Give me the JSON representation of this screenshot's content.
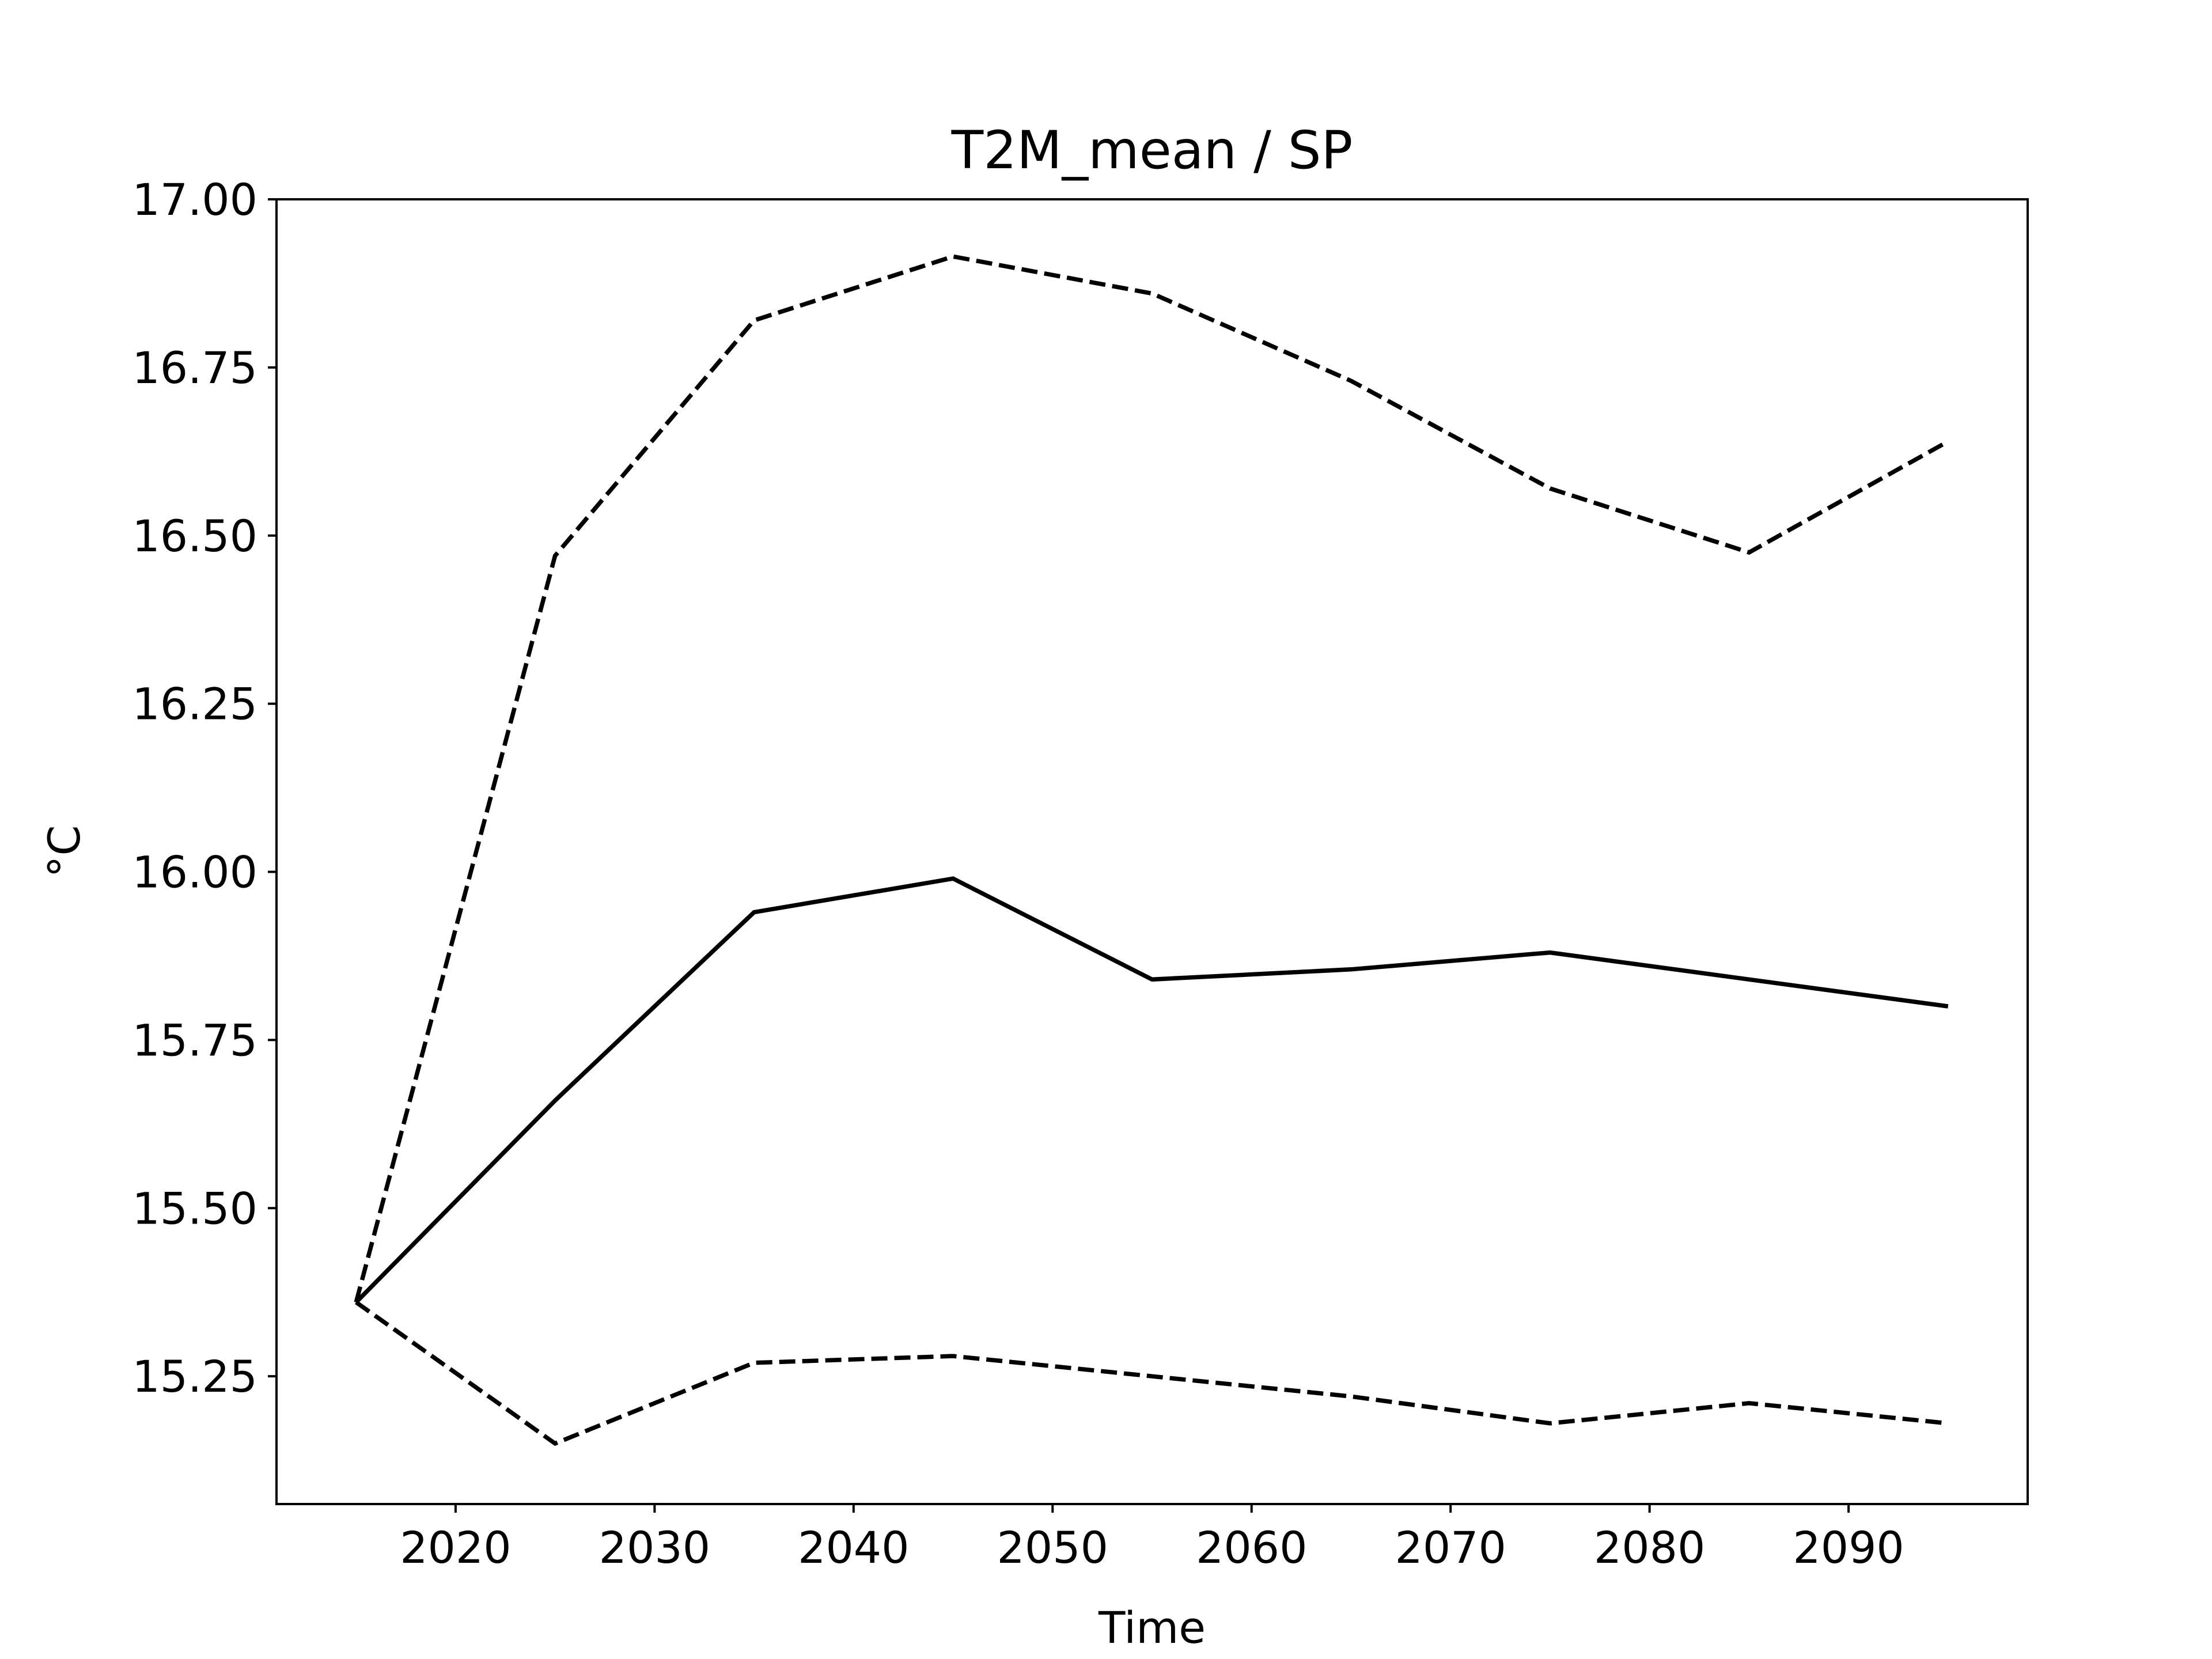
{
  "chart_data": {
    "type": "line",
    "title": "T2M_mean / SP",
    "xlabel": "Time",
    "ylabel": "°C",
    "xlim": [
      2011,
      2099
    ],
    "ylim": [
      15.06,
      17.0
    ],
    "x_ticks": [
      2020,
      2030,
      2040,
      2050,
      2060,
      2070,
      2080,
      2090
    ],
    "y_ticks": [
      15.25,
      15.5,
      15.75,
      16.0,
      16.25,
      16.5,
      16.75,
      17.0
    ],
    "y_tick_labels": [
      "15.25",
      "15.50",
      "15.75",
      "16.00",
      "16.25",
      "16.50",
      "16.75",
      "17.00"
    ],
    "grid": false,
    "x": [
      2015,
      2025,
      2035,
      2045,
      2055,
      2065,
      2075,
      2085,
      2095
    ],
    "series": [
      {
        "style": "solid",
        "color": "#000000",
        "values": [
          15.36,
          15.66,
          15.94,
          15.99,
          15.84,
          15.855,
          15.88,
          15.84,
          15.8
        ]
      },
      {
        "style": "dashed",
        "color": "#000000",
        "values": [
          15.36,
          16.47,
          16.82,
          16.915,
          16.86,
          16.73,
          16.57,
          16.475,
          16.64
        ]
      },
      {
        "style": "dashed",
        "color": "#000000",
        "values": [
          15.36,
          15.15,
          15.27,
          15.28,
          15.25,
          15.22,
          15.18,
          15.21,
          15.18
        ]
      }
    ]
  }
}
